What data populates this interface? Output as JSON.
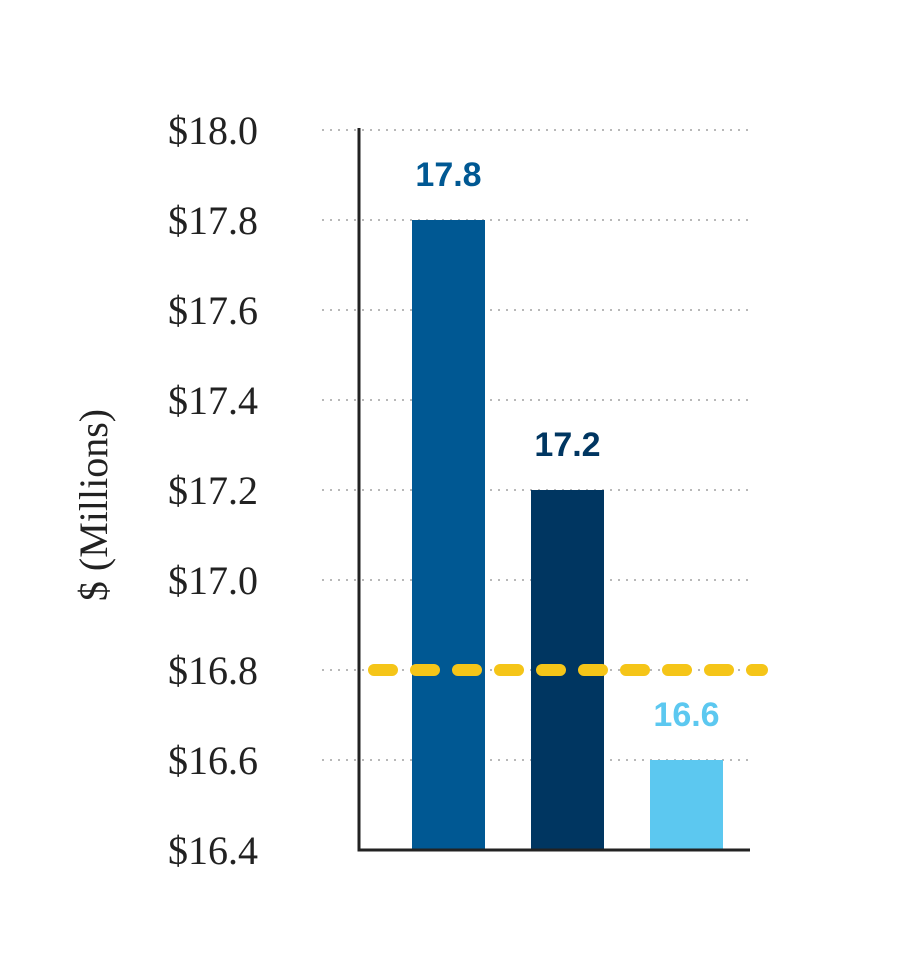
{
  "chart_data": {
    "type": "bar",
    "ylabel": "$ (Millions)",
    "ylim": [
      16.4,
      18.0
    ],
    "yticks": [
      "$18.0",
      "$17.8",
      "$17.6",
      "$17.4",
      "$17.2",
      "$17.0",
      "$16.8",
      "$16.6",
      "$16.4"
    ],
    "ytick_values": [
      18.0,
      17.8,
      17.6,
      17.4,
      17.2,
      17.0,
      16.8,
      16.6,
      16.4
    ],
    "grid": true,
    "bars": [
      {
        "value": 17.8,
        "label": "17.8",
        "color": "#005893"
      },
      {
        "value": 17.2,
        "label": "17.2",
        "color": "#003661"
      },
      {
        "value": 16.6,
        "label": "16.6",
        "color": "#5CC8F0"
      }
    ],
    "reference_line": {
      "value": 16.8,
      "color": "#F5C518",
      "style": "dashed"
    }
  }
}
